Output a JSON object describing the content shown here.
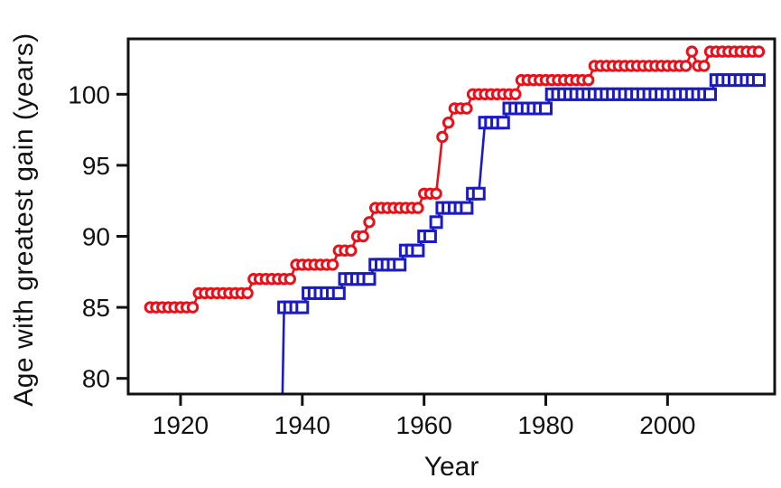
{
  "figure": {
    "background": "#ffffff"
  },
  "chart_data": {
    "type": "line",
    "title": "",
    "xlabel": "Year",
    "ylabel": "Age with greatest gain (years)",
    "xlim": [
      1911.4,
      2017.6
    ],
    "ylim": [
      78.9,
      103.9
    ],
    "xticks": [
      1920,
      1940,
      1960,
      1980,
      2000
    ],
    "yticks": [
      80,
      85,
      90,
      95,
      100
    ],
    "grid": false,
    "legend_position": "none",
    "axis_color": "#111111",
    "series": [
      {
        "name": "red-circles",
        "marker": "circle",
        "color": "#e8111a",
        "runs_note": "each run is [start_year, end_year, age_value], one data point per year",
        "runs": [
          [
            1915,
            1922,
            85
          ],
          [
            1923,
            1931,
            86
          ],
          [
            1932,
            1938,
            87
          ],
          [
            1939,
            1945,
            88
          ],
          [
            1946,
            1948,
            89
          ],
          [
            1949,
            1950,
            90
          ],
          [
            1951,
            1951,
            91
          ],
          [
            1952,
            1959,
            92
          ],
          [
            1960,
            1962,
            93
          ],
          [
            1963,
            1963,
            97
          ],
          [
            1964,
            1964,
            98
          ],
          [
            1965,
            1967,
            99
          ],
          [
            1968,
            1975,
            100
          ],
          [
            1976,
            1987,
            101
          ],
          [
            1988,
            2003,
            102
          ],
          [
            2004,
            2004,
            103
          ],
          [
            2005,
            2006,
            102
          ],
          [
            2007,
            2015,
            103
          ]
        ]
      },
      {
        "name": "blue-squares",
        "marker": "square",
        "color": "#1a1ac9",
        "lead_in": [
          1936.75,
          78.9
        ],
        "runs_note": "each run is [start_year, end_year, age_value], one data point per year; line enters from below axis at ~1937",
        "runs": [
          [
            1937,
            1940,
            85
          ],
          [
            1941,
            1946,
            86
          ],
          [
            1947,
            1951,
            87
          ],
          [
            1952,
            1956,
            88
          ],
          [
            1957,
            1959,
            89
          ],
          [
            1960,
            1961,
            90
          ],
          [
            1962,
            1962,
            91
          ],
          [
            1963,
            1967,
            92
          ],
          [
            1968,
            1969,
            93
          ],
          [
            1970,
            1973,
            98
          ],
          [
            1974,
            1980,
            99
          ],
          [
            1981,
            2007,
            100
          ],
          [
            2008,
            2015,
            101
          ]
        ]
      }
    ]
  }
}
